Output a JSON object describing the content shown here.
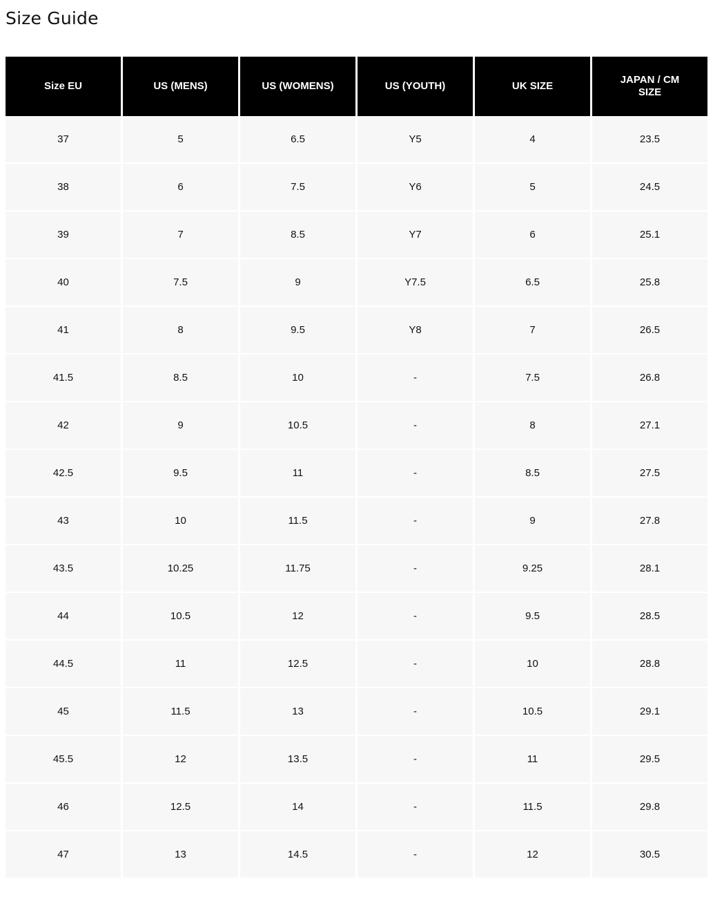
{
  "title": "Size Guide",
  "table": {
    "headers": [
      "Size EU",
      "US (MENS)",
      "US (WOMENS)",
      "US (YOUTH)",
      "UK SIZE",
      "JAPAN / CM SIZE"
    ],
    "rows": [
      [
        "37",
        "5",
        "6.5",
        "Y5",
        "4",
        "23.5"
      ],
      [
        "38",
        "6",
        "7.5",
        "Y6",
        "5",
        "24.5"
      ],
      [
        "39",
        "7",
        "8.5",
        "Y7",
        "6",
        "25.1"
      ],
      [
        "40",
        "7.5",
        "9",
        "Y7.5",
        "6.5",
        "25.8"
      ],
      [
        "41",
        "8",
        "9.5",
        "Y8",
        "7",
        "26.5"
      ],
      [
        "41.5",
        "8.5",
        "10",
        "-",
        "7.5",
        "26.8"
      ],
      [
        "42",
        "9",
        "10.5",
        "-",
        "8",
        "27.1"
      ],
      [
        "42.5",
        "9.5",
        "11",
        "-",
        "8.5",
        "27.5"
      ],
      [
        "43",
        "10",
        "11.5",
        "-",
        "9",
        "27.8"
      ],
      [
        "43.5",
        "10.25",
        "11.75",
        "-",
        "9.25",
        "28.1"
      ],
      [
        "44",
        "10.5",
        "12",
        "-",
        "9.5",
        "28.5"
      ],
      [
        "44.5",
        "11",
        "12.5",
        "-",
        "10",
        "28.8"
      ],
      [
        "45",
        "11.5",
        "13",
        "-",
        "10.5",
        "29.1"
      ],
      [
        "45.5",
        "12",
        "13.5",
        "-",
        "11",
        "29.5"
      ],
      [
        "46",
        "12.5",
        "14",
        "-",
        "11.5",
        "29.8"
      ],
      [
        "47",
        "13",
        "14.5",
        "-",
        "12",
        "30.5"
      ]
    ]
  }
}
